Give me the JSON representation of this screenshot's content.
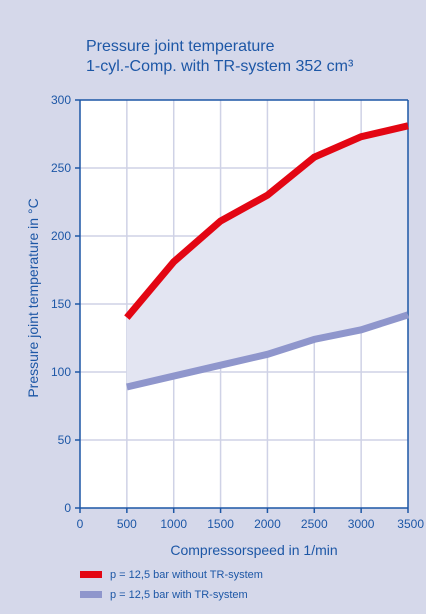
{
  "chart_data": {
    "type": "line",
    "title_lines": [
      "Pressure joint temperature",
      "1-cyl.-Comp. with TR-system 352 cm³"
    ],
    "xlabel": "Compressorspeed in 1/min",
    "ylabel": "Pressure joint temperature in °C",
    "xlim": [
      0,
      3500
    ],
    "ylim": [
      0,
      300
    ],
    "x_ticks": [
      0,
      500,
      1000,
      1500,
      2000,
      2500,
      3000,
      3500
    ],
    "y_ticks": [
      0,
      50,
      100,
      150,
      200,
      250,
      300
    ],
    "grid": true,
    "legend_position": "bottom",
    "shaded_region_between_series": true,
    "series": [
      {
        "name": "p = 12,5 bar without TR-system",
        "color": "#e30613",
        "x": [
          500,
          1000,
          1500,
          2000,
          2500,
          3000,
          3500
        ],
        "y": [
          140,
          181,
          211,
          230,
          258,
          273,
          281
        ]
      },
      {
        "name": "p = 12,5 bar with TR-system",
        "color": "#8f96cc",
        "x": [
          500,
          1000,
          1500,
          2000,
          2500,
          3000,
          3500
        ],
        "y": [
          89,
          97,
          105,
          113,
          124,
          131,
          142
        ]
      }
    ],
    "colors": {
      "background": "#d5d8ea",
      "plot_background": "#ffffff",
      "grid": "#cfd2e6",
      "axis": "#1d57a6",
      "shade": "#e3e5f2"
    }
  }
}
